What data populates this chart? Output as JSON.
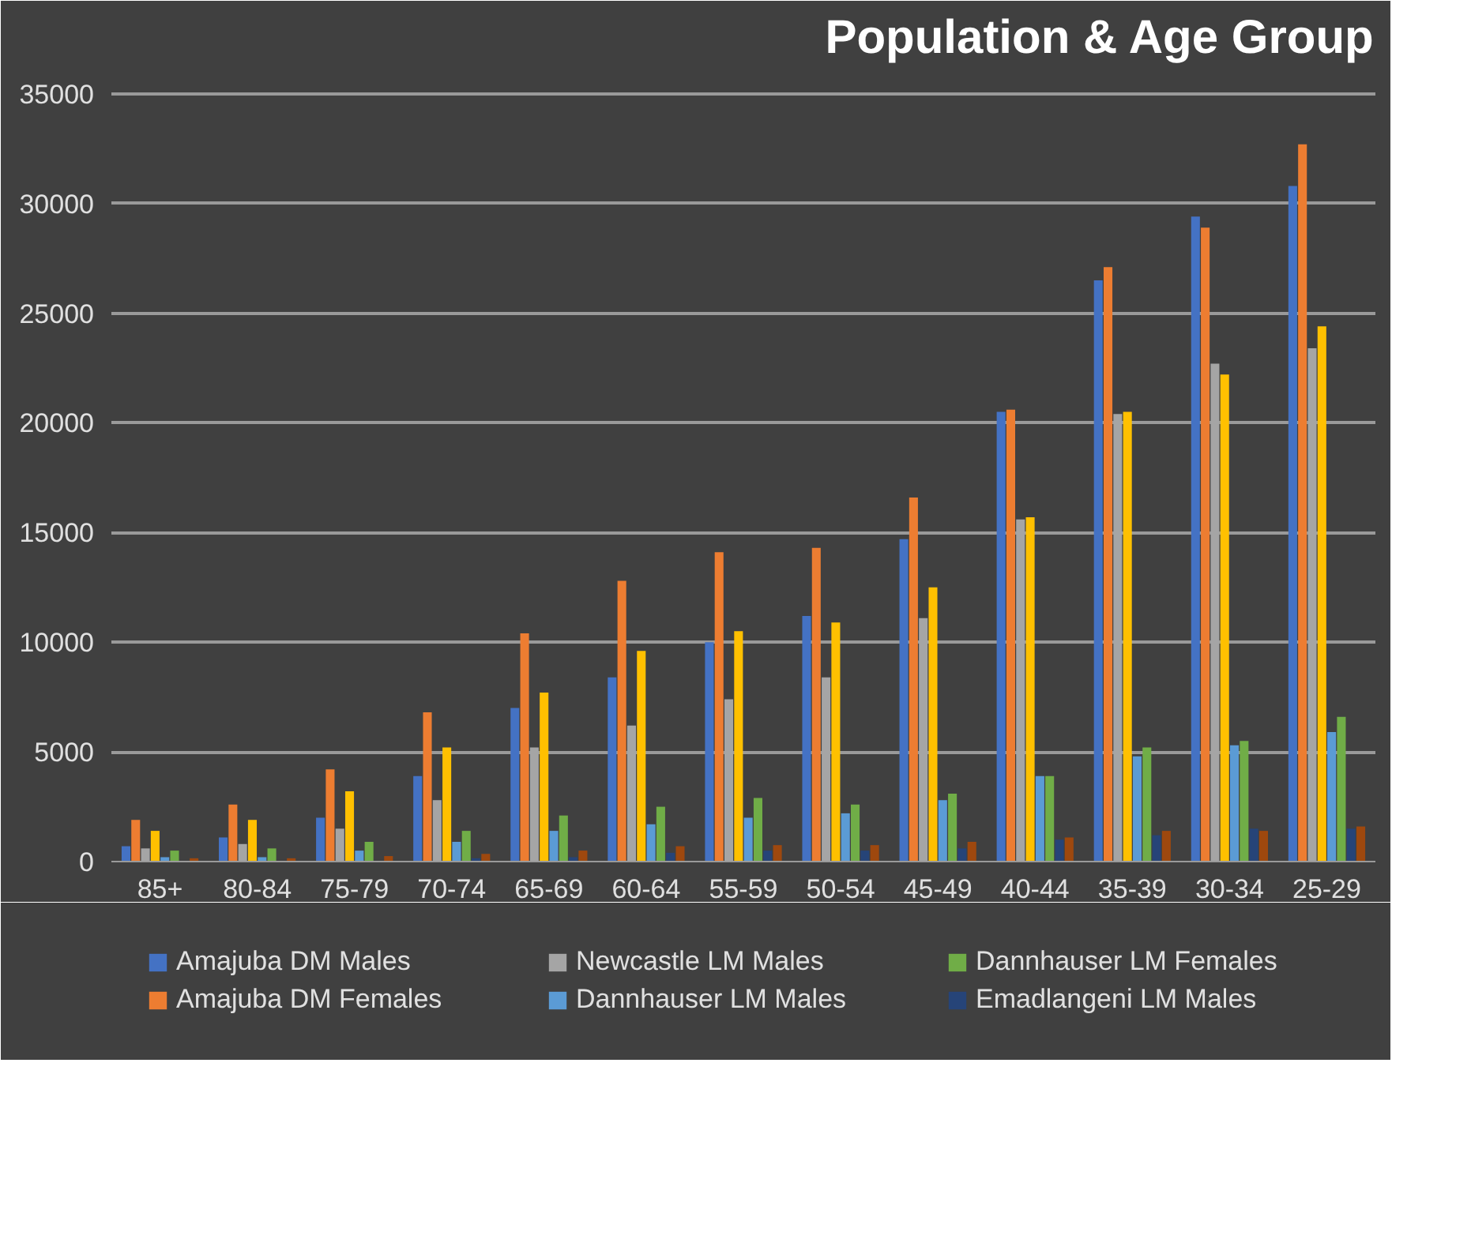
{
  "chart_data": {
    "type": "bar",
    "title": "Population & Age Group",
    "categories": [
      "85+",
      "80-84",
      "75-79",
      "70-74",
      "65-69",
      "60-64",
      "55-59",
      "50-54",
      "45-49",
      "40-44",
      "35-39",
      "30-34",
      "25-29"
    ],
    "series": [
      {
        "name": "Amajuba DM Males",
        "color": "#4472c4",
        "values": [
          700,
          1100,
          2000,
          3900,
          7000,
          8400,
          10000,
          11200,
          14700,
          20500,
          26500,
          29400,
          30800
        ]
      },
      {
        "name": "Amajuba DM Females",
        "color": "#ed7d31",
        "values": [
          1900,
          2600,
          4200,
          6800,
          10400,
          12800,
          14100,
          14300,
          16600,
          20600,
          27100,
          28900,
          32700
        ]
      },
      {
        "name": "Newcastle LM Males",
        "color": "#a5a5a5",
        "values": [
          600,
          800,
          1500,
          2800,
          5200,
          6200,
          7400,
          8400,
          11100,
          15600,
          20400,
          22700,
          23400
        ]
      },
      {
        "color": "#ffc000",
        "values": [
          1400,
          1900,
          3200,
          5200,
          7700,
          9600,
          10500,
          10900,
          12500,
          15700,
          20500,
          22200,
          24400
        ]
      },
      {
        "name": "Dannhauser LM Males",
        "color": "#5b9bd5",
        "values": [
          200,
          200,
          500,
          900,
          1400,
          1700,
          2000,
          2200,
          2800,
          3900,
          4800,
          5300,
          5900
        ]
      },
      {
        "name": "Dannhauser LM Females",
        "color": "#70ad47",
        "values": [
          500,
          600,
          900,
          1400,
          2100,
          2500,
          2900,
          2600,
          3100,
          3900,
          5200,
          5500,
          6600
        ]
      },
      {
        "name": "Emadlangeni LM Males",
        "color": "#264478",
        "values": [
          null,
          null,
          null,
          150,
          200,
          400,
          500,
          500,
          600,
          1000,
          1200,
          1500,
          1500
        ]
      },
      {
        "color": "#9e480e",
        "values": [
          150,
          150,
          250,
          350,
          500,
          700,
          750,
          750,
          900,
          1100,
          1400,
          1400,
          1600
        ]
      }
    ],
    "ylim": [
      0,
      36000
    ],
    "yticks": [
      0,
      5000,
      10000,
      15000,
      20000,
      25000,
      30000,
      35000
    ],
    "grid": "y",
    "legend": "bottom"
  }
}
